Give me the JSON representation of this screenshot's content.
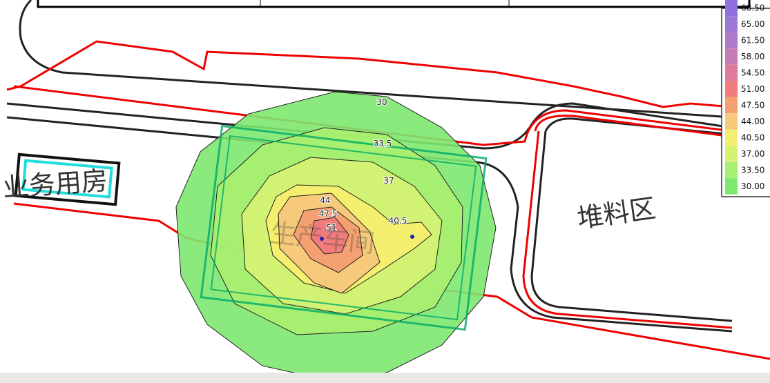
{
  "map": {
    "area_labels": [
      "业务用房",
      "生产车间",
      "堆料区"
    ],
    "contour_labels": [
      "30",
      "33.5",
      "37",
      "40.5",
      "44",
      "47.5",
      "51"
    ],
    "legend": [
      {
        "label": "68.50",
        "color": "#8f6fe0"
      },
      {
        "label": "65.00",
        "color": "#9b78d8"
      },
      {
        "label": "61.50",
        "color": "#b07ac8"
      },
      {
        "label": "58.00",
        "color": "#c67bb6"
      },
      {
        "label": "54.50",
        "color": "#df7a9c"
      },
      {
        "label": "51.00",
        "color": "#f07c7c"
      },
      {
        "label": "47.50",
        "color": "#f5a070"
      },
      {
        "label": "44.00",
        "color": "#f7c97a"
      },
      {
        "label": "40.50",
        "color": "#f5ef70"
      },
      {
        "label": "37.00",
        "color": "#d6f272"
      },
      {
        "label": "33.50",
        "color": "#a8f070"
      },
      {
        "label": "30.00",
        "color": "#7ee870"
      }
    ]
  }
}
